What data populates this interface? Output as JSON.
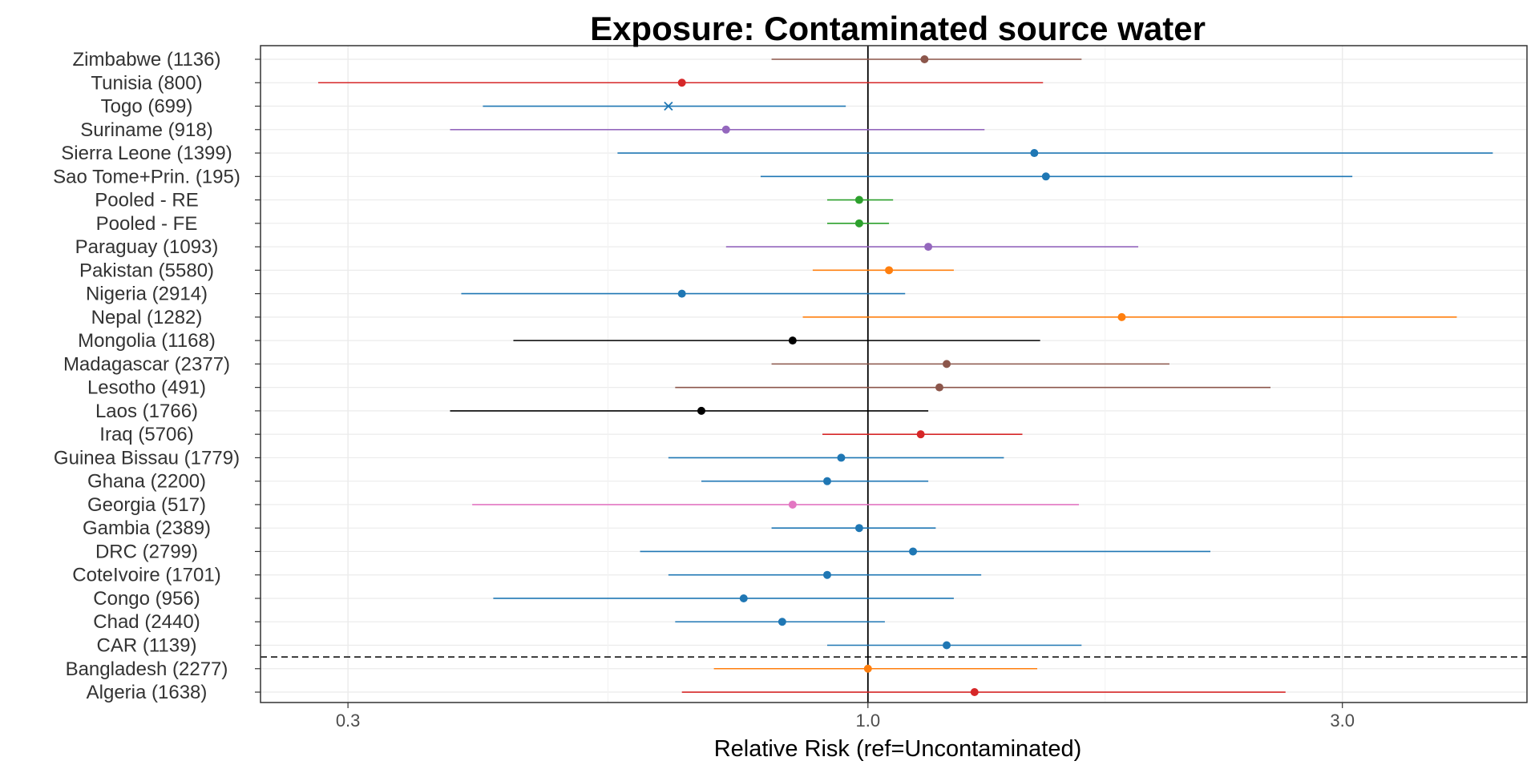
{
  "chart_data": {
    "type": "forest",
    "title": "Exposure: Contaminated source water",
    "xlabel": "Relative Risk (ref=Uncontaminated)",
    "ylabel": "",
    "x_scale": "log",
    "xlim": [
      0.245,
      4.6
    ],
    "x_ticks": [
      {
        "value": 0.3,
        "label": "0.3"
      },
      {
        "value": 1.0,
        "label": "1.0"
      },
      {
        "value": 3.0,
        "label": "3.0"
      }
    ],
    "reference_line": 1.0,
    "separator_between": [
      "CAR (1139)",
      "Bangladesh (2277)"
    ],
    "grid": true,
    "legend": "none",
    "rows": [
      {
        "label": "Zimbabwe (1136)",
        "estimate": 1.14,
        "lower": 0.8,
        "upper": 1.64,
        "color": "#8c564b",
        "marker": "dot"
      },
      {
        "label": "Tunisia (800)",
        "estimate": 0.65,
        "lower": 0.28,
        "upper": 1.5,
        "color": "#d62728",
        "marker": "dot"
      },
      {
        "label": "Togo (699)",
        "estimate": 0.63,
        "lower": 0.41,
        "upper": 0.95,
        "color": "#1f77b4",
        "marker": "cross"
      },
      {
        "label": "Suriname (918)",
        "estimate": 0.72,
        "lower": 0.38,
        "upper": 1.31,
        "color": "#9467bd",
        "marker": "dot"
      },
      {
        "label": "Sierra Leone (1399)",
        "estimate": 1.47,
        "lower": 0.56,
        "upper": 4.25,
        "color": "#1f77b4",
        "marker": "dot"
      },
      {
        "label": "Sao Tome+Prin. (195)",
        "estimate": 1.51,
        "lower": 0.78,
        "upper": 3.07,
        "color": "#1f77b4",
        "marker": "dot"
      },
      {
        "label": "Pooled - RE",
        "estimate": 0.98,
        "lower": 0.91,
        "upper": 1.06,
        "color": "#2ca02c",
        "marker": "dot"
      },
      {
        "label": "Pooled - FE",
        "estimate": 0.98,
        "lower": 0.91,
        "upper": 1.05,
        "color": "#2ca02c",
        "marker": "dot"
      },
      {
        "label": "Paraguay (1093)",
        "estimate": 1.15,
        "lower": 0.72,
        "upper": 1.87,
        "color": "#9467bd",
        "marker": "dot"
      },
      {
        "label": "Pakistan (5580)",
        "estimate": 1.05,
        "lower": 0.88,
        "upper": 1.22,
        "color": "#ff7f0e",
        "marker": "dot"
      },
      {
        "label": "Nigeria (2914)",
        "estimate": 0.65,
        "lower": 0.39,
        "upper": 1.09,
        "color": "#1f77b4",
        "marker": "dot"
      },
      {
        "label": "Nepal (1282)",
        "estimate": 1.8,
        "lower": 0.86,
        "upper": 3.91,
        "color": "#ff7f0e",
        "marker": "dot"
      },
      {
        "label": "Mongolia (1168)",
        "estimate": 0.84,
        "lower": 0.44,
        "upper": 1.49,
        "color": "#000000",
        "marker": "dot"
      },
      {
        "label": "Madagascar (2377)",
        "estimate": 1.2,
        "lower": 0.8,
        "upper": 2.01,
        "color": "#8c564b",
        "marker": "dot"
      },
      {
        "label": "Lesotho (491)",
        "estimate": 1.18,
        "lower": 0.64,
        "upper": 2.54,
        "color": "#8c564b",
        "marker": "dot"
      },
      {
        "label": "Laos (1766)",
        "estimate": 0.68,
        "lower": 0.38,
        "upper": 1.15,
        "color": "#000000",
        "marker": "dot"
      },
      {
        "label": "Iraq (5706)",
        "estimate": 1.13,
        "lower": 0.9,
        "upper": 1.43,
        "color": "#d62728",
        "marker": "dot"
      },
      {
        "label": "Guinea Bissau (1779)",
        "estimate": 0.94,
        "lower": 0.63,
        "upper": 1.37,
        "color": "#1f77b4",
        "marker": "dot"
      },
      {
        "label": "Ghana (2200)",
        "estimate": 0.91,
        "lower": 0.68,
        "upper": 1.15,
        "color": "#1f77b4",
        "marker": "dot"
      },
      {
        "label": "Georgia (517)",
        "estimate": 0.84,
        "lower": 0.4,
        "upper": 1.63,
        "color": "#e377c2",
        "marker": "dot"
      },
      {
        "label": "Gambia (2389)",
        "estimate": 0.98,
        "lower": 0.8,
        "upper": 1.17,
        "color": "#1f77b4",
        "marker": "dot"
      },
      {
        "label": "DRC (2799)",
        "estimate": 1.11,
        "lower": 0.59,
        "upper": 2.21,
        "color": "#1f77b4",
        "marker": "dot"
      },
      {
        "label": "CoteIvoire (1701)",
        "estimate": 0.91,
        "lower": 0.63,
        "upper": 1.3,
        "color": "#1f77b4",
        "marker": "dot"
      },
      {
        "label": "Congo (956)",
        "estimate": 0.75,
        "lower": 0.42,
        "upper": 1.22,
        "color": "#1f77b4",
        "marker": "dot"
      },
      {
        "label": "Chad (2440)",
        "estimate": 0.82,
        "lower": 0.64,
        "upper": 1.04,
        "color": "#1f77b4",
        "marker": "dot"
      },
      {
        "label": "CAR (1139)",
        "estimate": 1.2,
        "lower": 0.91,
        "upper": 1.64,
        "color": "#1f77b4",
        "marker": "dot"
      },
      {
        "label": "Bangladesh (2277)",
        "estimate": 1.0,
        "lower": 0.7,
        "upper": 1.48,
        "color": "#ff7f0e",
        "marker": "dot"
      },
      {
        "label": "Algeria (1638)",
        "estimate": 1.28,
        "lower": 0.65,
        "upper": 2.63,
        "color": "#d62728",
        "marker": "dot"
      }
    ]
  }
}
